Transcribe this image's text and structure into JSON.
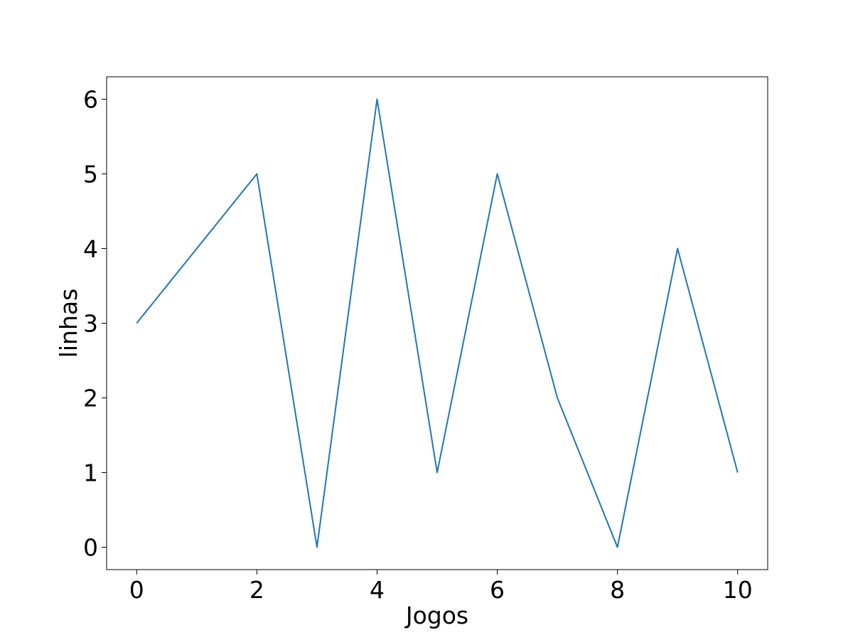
{
  "chart_data": {
    "type": "line",
    "title": "",
    "xlabel": "Jogos",
    "ylabel": "linhas",
    "x": [
      0,
      1,
      2,
      3,
      4,
      5,
      6,
      7,
      8,
      9,
      10
    ],
    "series": [
      {
        "values": [
          3,
          4,
          5,
          0,
          6,
          1,
          5,
          2,
          0,
          4,
          1
        ]
      }
    ],
    "xlim": [
      -0.5,
      10.5
    ],
    "ylim": [
      -0.3,
      6.3
    ],
    "xticks": [
      0,
      2,
      4,
      6,
      8,
      10
    ],
    "yticks": [
      0,
      1,
      2,
      3,
      4,
      5,
      6
    ],
    "grid": false,
    "legend": "none",
    "line_color": "#1f77b4"
  }
}
